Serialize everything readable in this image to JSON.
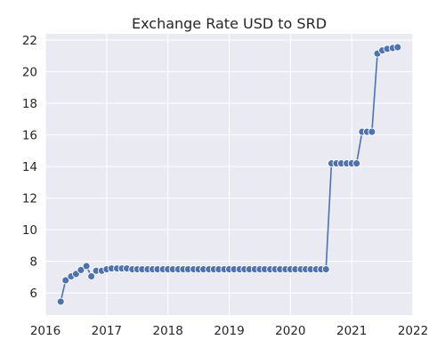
{
  "chart_data": {
    "type": "line",
    "title": "Exchange Rate USD to SRD",
    "xlabel": "",
    "ylabel": "",
    "xlim": [
      2016,
      2022
    ],
    "ylim": [
      4.6,
      22.4
    ],
    "x_ticks": [
      2016,
      2017,
      2018,
      2019,
      2020,
      2021,
      2022
    ],
    "y_ticks": [
      6,
      8,
      10,
      12,
      14,
      16,
      18,
      20,
      22
    ],
    "grid": true,
    "legend": "none",
    "marker": "circle",
    "colors": {
      "series": "#4c72b0",
      "plot_background": "#eaeaf2",
      "grid": "#ffffff",
      "text": "#262626"
    },
    "series": [
      {
        "x": [
          2016.25,
          2016.33,
          2016.42,
          2016.5,
          2016.58,
          2016.67,
          2016.75,
          2016.83,
          2016.92,
          2017.0,
          2017.08,
          2017.17,
          2017.25,
          2017.33,
          2017.42,
          2017.5,
          2017.58,
          2017.67,
          2017.75,
          2017.83,
          2017.92,
          2018.0,
          2018.08,
          2018.17,
          2018.25,
          2018.33,
          2018.42,
          2018.5,
          2018.58,
          2018.67,
          2018.75,
          2018.83,
          2018.92,
          2019.0,
          2019.08,
          2019.17,
          2019.25,
          2019.33,
          2019.42,
          2019.5,
          2019.58,
          2019.67,
          2019.75,
          2019.83,
          2019.92,
          2020.0,
          2020.08,
          2020.17,
          2020.25,
          2020.33,
          2020.42,
          2020.5,
          2020.58,
          2020.67,
          2020.75,
          2020.83,
          2020.92,
          2021.0,
          2021.08,
          2021.17,
          2021.25,
          2021.33,
          2021.42,
          2021.5,
          2021.58,
          2021.67,
          2021.75
        ],
        "y": [
          5.45,
          6.8,
          7.05,
          7.2,
          7.45,
          7.7,
          7.05,
          7.4,
          7.4,
          7.5,
          7.55,
          7.55,
          7.55,
          7.55,
          7.5,
          7.5,
          7.5,
          7.5,
          7.5,
          7.5,
          7.5,
          7.5,
          7.5,
          7.5,
          7.5,
          7.5,
          7.5,
          7.5,
          7.5,
          7.5,
          7.5,
          7.5,
          7.5,
          7.5,
          7.5,
          7.5,
          7.5,
          7.5,
          7.5,
          7.5,
          7.5,
          7.5,
          7.5,
          7.5,
          7.5,
          7.5,
          7.5,
          7.5,
          7.5,
          7.5,
          7.5,
          7.5,
          7.5,
          14.2,
          14.2,
          14.2,
          14.2,
          14.2,
          14.2,
          16.2,
          16.2,
          16.2,
          21.15,
          21.35,
          21.45,
          21.5,
          21.55
        ]
      }
    ]
  }
}
